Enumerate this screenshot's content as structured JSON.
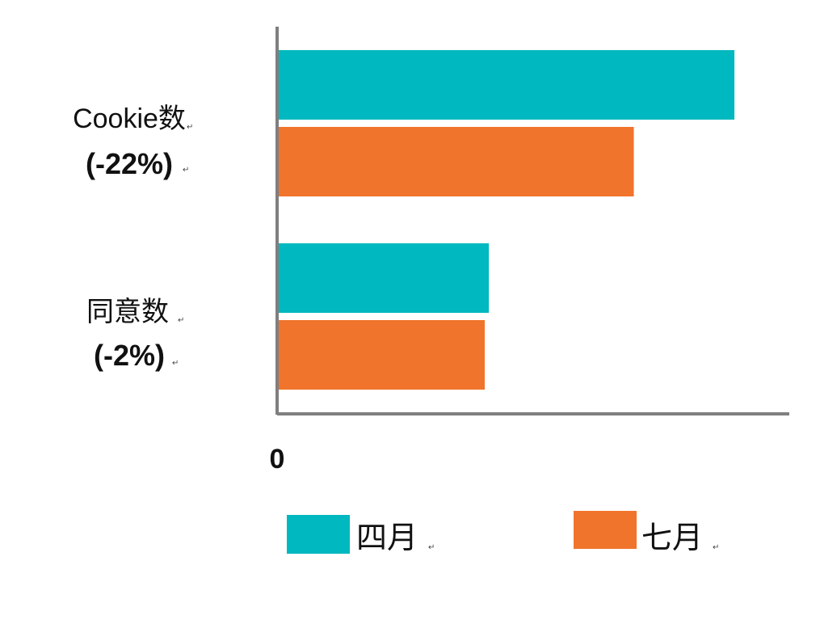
{
  "colors": {
    "april": "#00b8bf",
    "july": "#f0742b",
    "axis": "#7f7f7f",
    "text": "#111111"
  },
  "chart_data": {
    "type": "bar",
    "orientation": "horizontal",
    "categories": [
      {
        "name": "Cookie数",
        "change": "(-22%)"
      },
      {
        "name": "同意数",
        "change": "(-2%)"
      }
    ],
    "series": [
      {
        "name": "四月",
        "values": [
          100,
          46.3
        ]
      },
      {
        "name": "七月",
        "values": [
          78,
          45.4
        ]
      }
    ],
    "x_tick_labels": [
      "0"
    ],
    "xlim": [
      0,
      112
    ],
    "grid": false,
    "legend_position": "bottom"
  }
}
